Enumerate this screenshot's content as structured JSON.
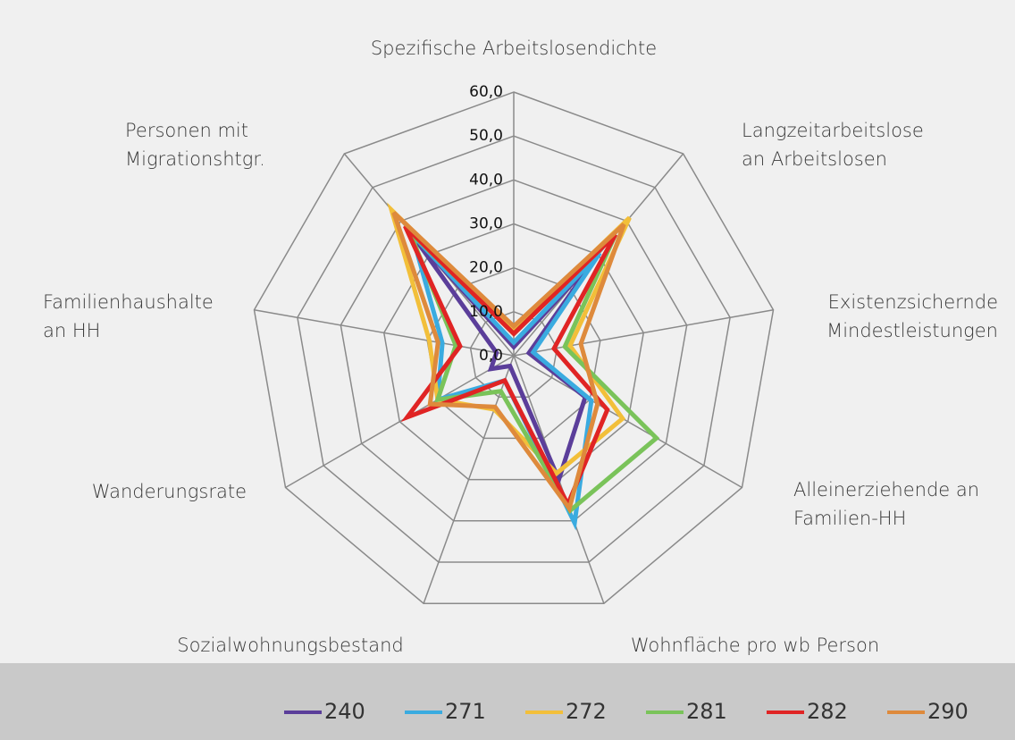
{
  "chart_data": {
    "type": "radar",
    "categories": [
      "Spezifische Arbeitslosendichte",
      "Langzeitarbeitslose\nan Arbeitslosen",
      "Existenzsichernde\nMindestleistungen",
      "Alleinerziehende an\nFamilien-HH",
      "Wohnfläche pro wb Person",
      "Sozialwohnungsbestand",
      "Wanderungsrate",
      "Familienhaushalte\nan HH",
      "Personen mit\nMigrationshtgr."
    ],
    "series": [
      {
        "name": "240",
        "color": "#5b3e9a",
        "values": [
          2,
          29,
          3.5,
          18.8,
          30,
          2.5,
          6,
          4,
          36
        ]
      },
      {
        "name": "271",
        "color": "#3aabe0",
        "values": [
          3,
          30.5,
          4.5,
          20.4,
          40.5,
          6,
          20,
          16.5,
          36
        ]
      },
      {
        "name": "272",
        "color": "#f2bf3a",
        "values": [
          6,
          41,
          13,
          28.6,
          28.5,
          13,
          20,
          19.5,
          43.3
        ]
      },
      {
        "name": "281",
        "color": "#7ac35a",
        "values": [
          5,
          36,
          11.8,
          37.5,
          37.5,
          8.6,
          20,
          13.4,
          37
        ]
      },
      {
        "name": "282",
        "color": "#e02424",
        "values": [
          5,
          36,
          9.3,
          24.6,
          36,
          6,
          28,
          12.4,
          38.5
        ]
      },
      {
        "name": "290",
        "color": "#de8a3c",
        "values": [
          6.7,
          39,
          15.5,
          22,
          37,
          12.4,
          22,
          17.5,
          42.5
        ]
      }
    ],
    "rlim": [
      0,
      60
    ],
    "rticks": [
      {
        "value": 0,
        "label": "0,0"
      },
      {
        "value": 10,
        "label": "10,0"
      },
      {
        "value": 20,
        "label": "20,0"
      },
      {
        "value": 30,
        "label": "30,0"
      },
      {
        "value": 40,
        "label": "40,0"
      },
      {
        "value": 50,
        "label": "50,0"
      },
      {
        "value": 60,
        "label": "60,0"
      }
    ],
    "grid": true,
    "legend": "bottom"
  }
}
